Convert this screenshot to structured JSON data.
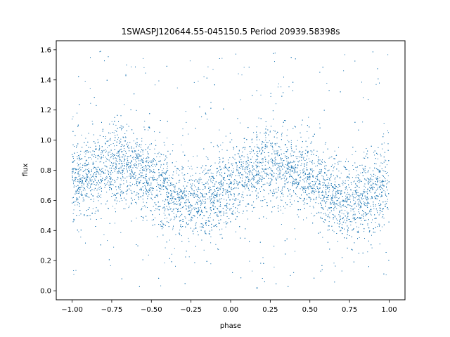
{
  "chart_data": {
    "type": "scatter",
    "title": "1SWASPJ120644.55-045150.5 Period 20939.58398s",
    "xlabel": "phase",
    "ylabel": "flux",
    "xlim": [
      -1.1,
      1.1
    ],
    "ylim": [
      -0.06,
      1.66
    ],
    "xticks": [
      -1.0,
      -0.75,
      -0.5,
      -0.25,
      0.0,
      0.25,
      0.5,
      0.75,
      1.0
    ],
    "xtick_labels": [
      "−1.00",
      "−0.75",
      "−0.50",
      "−0.25",
      "0.00",
      "0.25",
      "0.50",
      "0.75",
      "1.00"
    ],
    "yticks": [
      0.0,
      0.2,
      0.4,
      0.6,
      0.8,
      1.0,
      1.2,
      1.4,
      1.6
    ],
    "ytick_labels": [
      "0.0",
      "0.2",
      "0.4",
      "0.6",
      "0.8",
      "1.0",
      "1.2",
      "1.4",
      "1.6"
    ],
    "grid": false,
    "point_color": "#1f77b4",
    "series": [
      {
        "x": [
          -1.0,
          -0.95,
          -0.9,
          -0.85,
          -0.8,
          -0.75,
          -0.7,
          -0.65,
          -0.6,
          -0.55,
          -0.5,
          -0.45,
          -0.4,
          -0.35,
          -0.3,
          -0.25,
          -0.2,
          -0.15,
          -0.1,
          -0.05,
          0.0,
          0.05,
          0.1,
          0.15,
          0.2,
          0.25,
          0.3,
          0.35,
          0.4,
          0.45,
          0.5,
          0.55,
          0.6,
          0.65,
          0.7,
          0.75,
          0.8,
          0.85,
          0.9,
          0.95,
          1.0
        ],
        "y_center": [
          0.69,
          0.73,
          0.76,
          0.79,
          0.81,
          0.83,
          0.83,
          0.82,
          0.8,
          0.77,
          0.74,
          0.7,
          0.66,
          0.62,
          0.6,
          0.59,
          0.59,
          0.61,
          0.63,
          0.66,
          0.69,
          0.73,
          0.76,
          0.79,
          0.81,
          0.83,
          0.83,
          0.82,
          0.8,
          0.77,
          0.74,
          0.7,
          0.66,
          0.62,
          0.6,
          0.59,
          0.59,
          0.61,
          0.63,
          0.66,
          0.69
        ],
        "y_spread": 0.13,
        "y_range": [
          0.0,
          1.59
        ]
      }
    ]
  }
}
